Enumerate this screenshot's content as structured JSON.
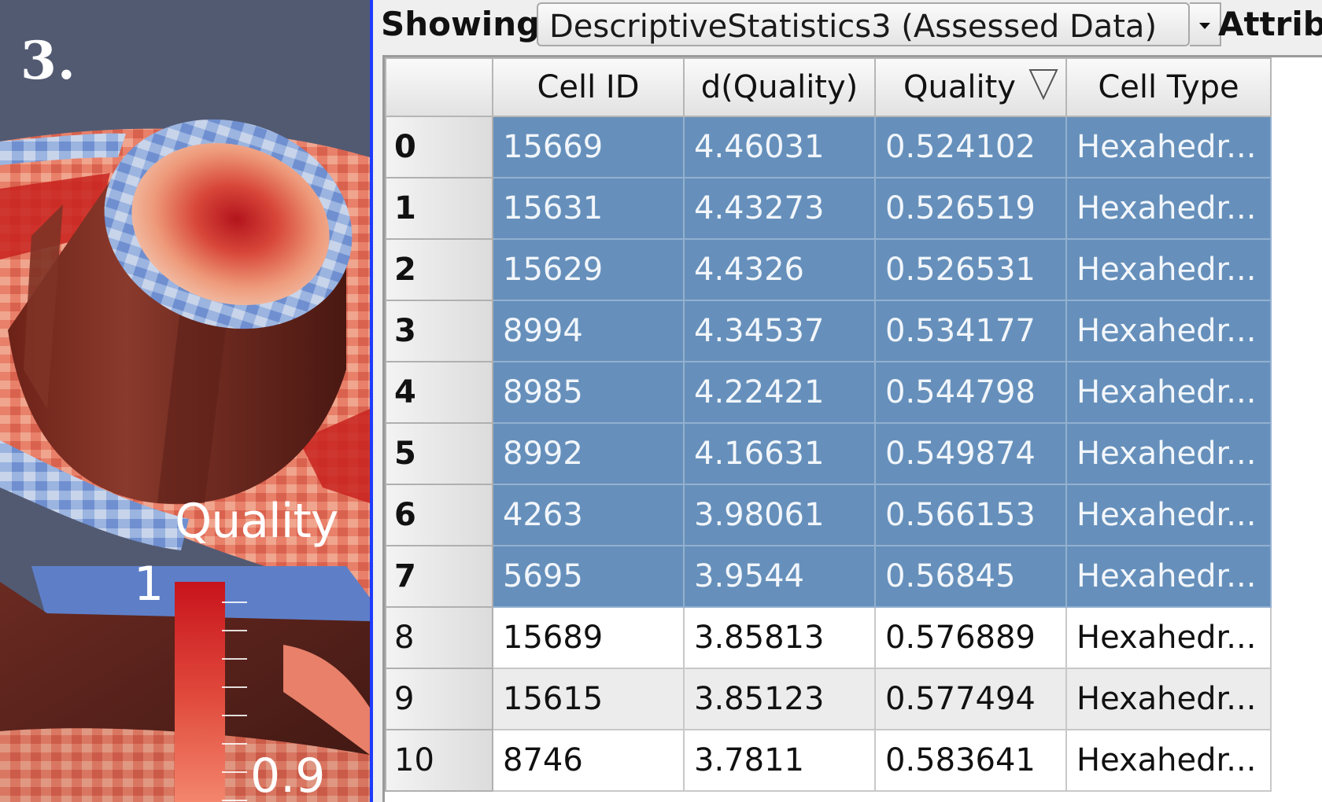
{
  "render_view": {
    "step_label": "3.",
    "scalar_bar": {
      "title": "Quality",
      "max_label": "1",
      "min_label": "0.9"
    }
  },
  "toolbar": {
    "showing_label": "Showing",
    "source_value": "DescriptiveStatistics3 (Assessed Data)",
    "attribute_label": "Attribu"
  },
  "table": {
    "columns": [
      "",
      "Cell ID",
      "d(Quality)",
      "Quality",
      "Cell Type"
    ],
    "sorted_column": "Quality",
    "sort_direction": "descending",
    "rows": [
      {
        "index": "0",
        "cell_id": "15669",
        "d_quality": "4.46031",
        "quality": "0.524102",
        "cell_type": "Hexahedr...",
        "selected": true
      },
      {
        "index": "1",
        "cell_id": "15631",
        "d_quality": "4.43273",
        "quality": "0.526519",
        "cell_type": "Hexahedr...",
        "selected": true
      },
      {
        "index": "2",
        "cell_id": "15629",
        "d_quality": "4.4326",
        "quality": "0.526531",
        "cell_type": "Hexahedr...",
        "selected": true
      },
      {
        "index": "3",
        "cell_id": "8994",
        "d_quality": "4.34537",
        "quality": "0.534177",
        "cell_type": "Hexahedr...",
        "selected": true
      },
      {
        "index": "4",
        "cell_id": "8985",
        "d_quality": "4.22421",
        "quality": "0.544798",
        "cell_type": "Hexahedr...",
        "selected": true
      },
      {
        "index": "5",
        "cell_id": "8992",
        "d_quality": "4.16631",
        "quality": "0.549874",
        "cell_type": "Hexahedr...",
        "selected": true
      },
      {
        "index": "6",
        "cell_id": "4263",
        "d_quality": "3.98061",
        "quality": "0.566153",
        "cell_type": "Hexahedr...",
        "selected": true
      },
      {
        "index": "7",
        "cell_id": "5695",
        "d_quality": "3.9544",
        "quality": "0.56845",
        "cell_type": "Hexahedr...",
        "selected": true
      },
      {
        "index": "8",
        "cell_id": "15689",
        "d_quality": "3.85813",
        "quality": "0.576889",
        "cell_type": "Hexahedr...",
        "selected": false
      },
      {
        "index": "9",
        "cell_id": "15615",
        "d_quality": "3.85123",
        "quality": "0.577494",
        "cell_type": "Hexahedr...",
        "selected": false
      },
      {
        "index": "10",
        "cell_id": "8746",
        "d_quality": "3.7811",
        "quality": "0.583641",
        "cell_type": "Hexahedr...",
        "selected": false
      }
    ]
  },
  "colors": {
    "selection": "#6690bb",
    "render_background": "#525a72",
    "divider": "#1f3bff"
  }
}
